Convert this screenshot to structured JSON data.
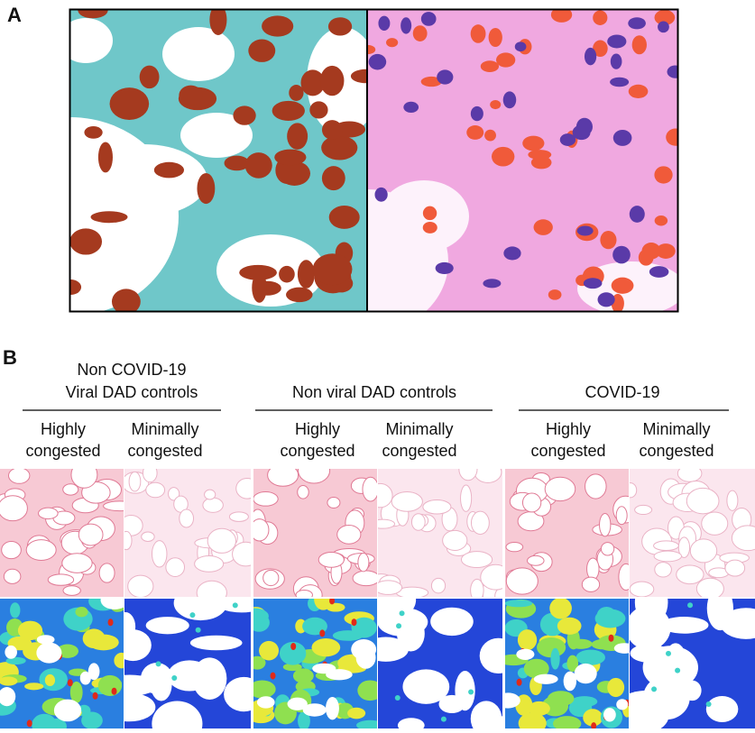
{
  "panel_a": {
    "label": "A"
  },
  "panel_b": {
    "label": "B",
    "groups": [
      {
        "title": [
          "Non COVID-19",
          "Viral DAD controls"
        ],
        "columns": [
          [
            "Highly",
            "congested"
          ],
          [
            "Minimally",
            "congested"
          ]
        ]
      },
      {
        "title": [
          "Non viral DAD controls"
        ],
        "columns": [
          [
            "Highly",
            "congested"
          ],
          [
            "Minimally",
            "congested"
          ]
        ]
      },
      {
        "title": [
          "COVID-19"
        ],
        "columns": [
          [
            "Highly",
            "congested"
          ],
          [
            "Minimally",
            "congested"
          ]
        ]
      }
    ]
  }
}
